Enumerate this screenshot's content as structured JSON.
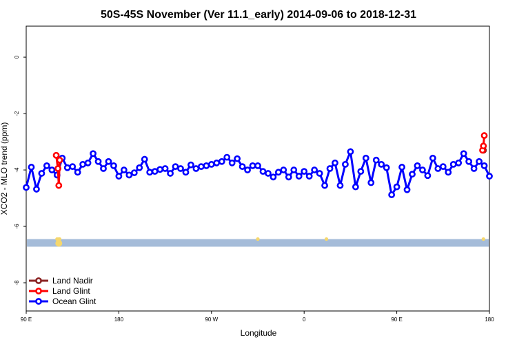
{
  "chart_data": {
    "type": "line",
    "title": "50S-45S November (Ver 11.1_early)   2014-09-06 to 2018-12-31",
    "xlabel": "Longitude",
    "ylabel": "XCO2 - MLO trend (ppm)",
    "ylim": [
      -9.0,
      1.1
    ],
    "y_ticks": [
      0,
      -2,
      -4,
      -6,
      -8
    ],
    "x_ticks": [
      "90 E",
      "180",
      "90 W",
      "0",
      "90 E",
      "180"
    ],
    "band_color": "#a5bcd9",
    "band_marker_color": "#f5d76e",
    "legend_position": "bottom-left",
    "series": [
      {
        "name": "Land Nadir",
        "color": "#8b2323",
        "x": [
          -178.5,
          176.5
        ],
        "values": [
          -3.3,
          -3.3
        ]
      },
      {
        "name": "Land Glint",
        "color": "#ff0000",
        "x": [
          -178.5,
          -178.0,
          -177.5,
          -72.5,
          -71.5,
          -71.0,
          -70.5,
          176.0,
          176.5,
          177.0
        ],
        "values": [
          -3.3,
          -3.15,
          -2.78,
          -3.48,
          -3.95,
          -4.55,
          -3.65,
          -3.3,
          -3.15,
          -2.78
        ]
      },
      {
        "name": "Ocean Glint",
        "color": "#0000ff",
        "x": [
          -90,
          -87,
          -84,
          -81,
          -78,
          -75,
          -72,
          -69,
          -66,
          -63,
          -60,
          -57,
          -54,
          -51,
          -48,
          -45,
          -42,
          -39,
          -36,
          -33,
          -30,
          -27,
          -24,
          -21,
          -18,
          -15,
          -12,
          -9,
          -6,
          -3,
          0,
          3,
          6,
          9,
          12,
          15,
          18,
          21,
          24,
          27,
          30,
          33,
          36,
          39,
          42,
          45,
          48,
          51,
          54,
          57,
          60,
          63,
          66,
          69,
          72,
          75,
          78,
          81,
          84,
          87,
          90,
          93,
          96,
          99,
          102,
          105,
          108,
          111,
          114,
          117,
          120,
          123,
          126,
          129,
          132,
          135,
          138,
          141,
          144,
          147,
          150,
          153,
          156,
          159,
          162,
          165,
          168,
          171,
          174,
          177,
          180
        ],
        "values": [
          -4.62,
          -3.9,
          -4.68,
          -4.12,
          -3.85,
          -4.0,
          -4.18,
          -3.58,
          -3.92,
          -3.88,
          -4.08,
          -3.8,
          -3.75,
          -3.42,
          -3.7,
          -3.95,
          -3.7,
          -3.85,
          -4.22,
          -4.0,
          -4.18,
          -4.1,
          -3.92,
          -3.62,
          -4.08,
          -4.05,
          -3.98,
          -3.95,
          -4.12,
          -3.88,
          -3.95,
          -4.08,
          -3.82,
          -3.95,
          -3.88,
          -3.85,
          -3.8,
          -3.75,
          -3.7,
          -3.55,
          -3.75,
          -3.6,
          -3.88,
          -4.0,
          -3.85,
          -3.85,
          -4.05,
          -4.12,
          -4.25,
          -4.08,
          -4.0,
          -4.25,
          -4.0,
          -4.22,
          -4.05,
          -4.22,
          -4.0,
          -4.12,
          -4.55,
          -3.95,
          -3.75,
          -4.55,
          -3.8,
          -3.35,
          -4.6,
          -4.05,
          -3.58,
          -4.45,
          -3.65,
          -3.8,
          -3.92,
          -4.88,
          -4.6,
          -3.9,
          -4.7,
          -4.15,
          -3.85,
          -4.0,
          -4.2,
          -3.58,
          -3.95,
          -3.88,
          -4.08,
          -3.8,
          -3.75,
          -3.42,
          -3.7,
          -3.95,
          -3.7,
          -3.85,
          -4.22
        ]
      }
    ],
    "band_markers_x": [
      -178.5,
      -72,
      -71,
      -70.5,
      45,
      85,
      176.5
    ]
  }
}
